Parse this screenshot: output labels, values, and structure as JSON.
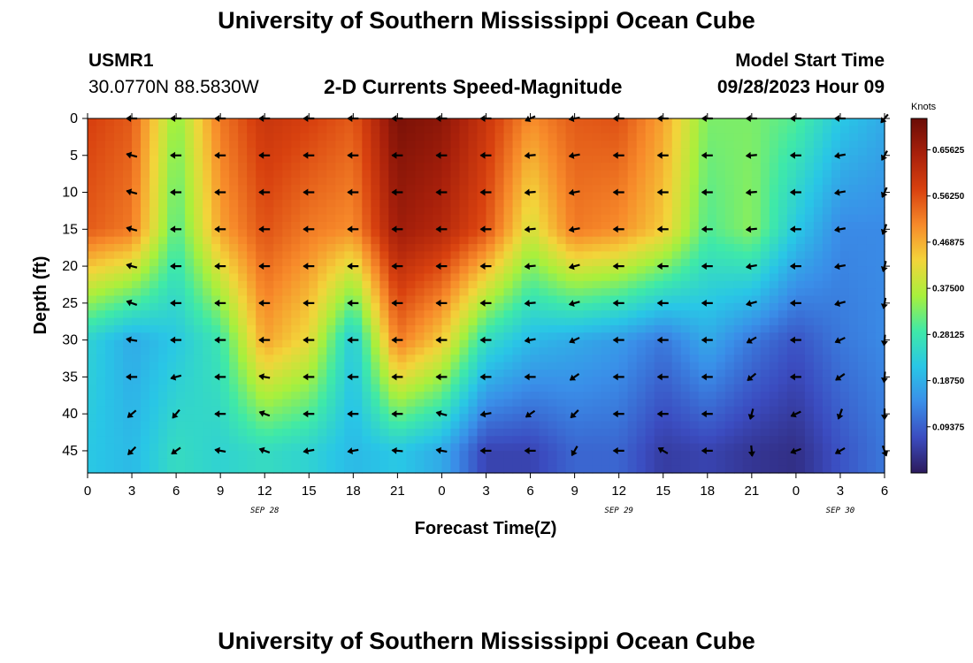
{
  "header": {
    "title": "University of Southern Mississippi Ocean Cube",
    "station_id": "USMR1",
    "coords": "30.0770N  88.5830W",
    "plot_title": "2-D Currents Speed-Magnitude",
    "model_label": "Model Start Time",
    "model_time": "09/28/2023 Hour 09"
  },
  "footer": {
    "title": "University of Southern Mississippi Ocean Cube"
  },
  "chart_data": {
    "type": "heatmap",
    "title": "2-D Currents Speed-Magnitude",
    "xlabel": "Forecast Time(Z)",
    "ylabel": "Depth (ft)",
    "x_hours": [
      0,
      54
    ],
    "x_tick_labels": [
      "0",
      "3",
      "6",
      "9",
      "12",
      "15",
      "18",
      "21",
      "0",
      "3",
      "6",
      "9",
      "12",
      "15",
      "18",
      "21",
      "0",
      "3",
      "6"
    ],
    "date_labels": [
      {
        "label": "SEP 28",
        "hour": 12
      },
      {
        "label": "SEP 29",
        "hour": 36
      },
      {
        "label": "SEP 30",
        "hour": 51
      }
    ],
    "depth_range": [
      0,
      48
    ],
    "y_ticks": [
      0,
      5,
      10,
      15,
      20,
      25,
      30,
      35,
      40,
      45
    ],
    "colorbar": {
      "title": "Knots",
      "min": 0,
      "max": 0.72,
      "ticks": [
        "0.65625",
        "0.56250",
        "0.46875",
        "0.37500",
        "0.28125",
        "0.18750",
        "0.09375"
      ],
      "tick_values": [
        0.65625,
        0.5625,
        0.46875,
        0.375,
        0.28125,
        0.1875,
        0.09375
      ],
      "colors": [
        "#2c1a5c",
        "#3b4cc0",
        "#3a8ee8",
        "#29c6e6",
        "#3fe9a8",
        "#a8f03c",
        "#f3d43a",
        "#f78a2a",
        "#d8410f",
        "#a8200b",
        "#6a0c06"
      ]
    },
    "speed_depths": [
      0,
      15,
      30,
      45
    ],
    "speed_profiles": [
      {
        "hour": 0,
        "speeds": [
          0.58,
          0.55,
          0.24,
          0.22
        ]
      },
      {
        "hour": 3,
        "speeds": [
          0.55,
          0.52,
          0.18,
          0.2
        ]
      },
      {
        "hour": 6,
        "speeds": [
          0.34,
          0.3,
          0.22,
          0.26
        ]
      },
      {
        "hour": 9,
        "speeds": [
          0.52,
          0.48,
          0.28,
          0.24
        ]
      },
      {
        "hour": 12,
        "speeds": [
          0.6,
          0.56,
          0.48,
          0.26
        ]
      },
      {
        "hour": 15,
        "speeds": [
          0.58,
          0.52,
          0.42,
          0.24
        ]
      },
      {
        "hour": 18,
        "speeds": [
          0.55,
          0.5,
          0.22,
          0.2
        ]
      },
      {
        "hour": 21,
        "speeds": [
          0.7,
          0.66,
          0.52,
          0.22
        ]
      },
      {
        "hour": 24,
        "speeds": [
          0.68,
          0.63,
          0.44,
          0.18
        ]
      },
      {
        "hour": 27,
        "speeds": [
          0.6,
          0.56,
          0.26,
          0.06
        ]
      },
      {
        "hour": 30,
        "speeds": [
          0.5,
          0.4,
          0.2,
          0.06
        ]
      },
      {
        "hour": 33,
        "speeds": [
          0.55,
          0.52,
          0.18,
          0.1
        ]
      },
      {
        "hour": 36,
        "speeds": [
          0.56,
          0.5,
          0.16,
          0.1
        ]
      },
      {
        "hour": 39,
        "speeds": [
          0.48,
          0.44,
          0.12,
          0.05
        ]
      },
      {
        "hour": 42,
        "speeds": [
          0.33,
          0.3,
          0.18,
          0.06
        ]
      },
      {
        "hour": 45,
        "speeds": [
          0.33,
          0.34,
          0.12,
          0.04
        ]
      },
      {
        "hour": 48,
        "speeds": [
          0.3,
          0.22,
          0.08,
          0.03
        ]
      },
      {
        "hour": 51,
        "speeds": [
          0.22,
          0.14,
          0.12,
          0.08
        ]
      },
      {
        "hour": 54,
        "speeds": [
          0.18,
          0.14,
          0.14,
          0.12
        ]
      }
    ],
    "vector_hours": [
      3,
      6,
      9,
      12,
      15,
      18,
      21,
      24,
      27,
      30,
      33,
      36,
      39,
      42,
      45,
      48,
      51,
      54
    ],
    "vector_depths": [
      0,
      5,
      10,
      15,
      20,
      25,
      30,
      35,
      40,
      45
    ],
    "vector_directions_deg": [
      [
        180,
        180,
        180,
        180,
        180,
        180,
        180,
        180,
        180,
        205,
        190,
        180,
        180,
        180,
        180,
        180,
        180,
        230
      ],
      [
        165,
        180,
        180,
        180,
        180,
        180,
        180,
        180,
        180,
        185,
        190,
        180,
        180,
        180,
        185,
        180,
        190,
        240
      ],
      [
        165,
        180,
        180,
        180,
        180,
        180,
        180,
        180,
        180,
        185,
        190,
        180,
        180,
        180,
        185,
        180,
        190,
        245
      ],
      [
        165,
        180,
        180,
        180,
        180,
        180,
        180,
        180,
        180,
        185,
        190,
        180,
        180,
        180,
        185,
        180,
        190,
        250
      ],
      [
        165,
        180,
        180,
        180,
        180,
        180,
        180,
        180,
        180,
        185,
        195,
        180,
        180,
        180,
        190,
        180,
        190,
        255
      ],
      [
        160,
        180,
        180,
        180,
        180,
        180,
        180,
        180,
        180,
        185,
        195,
        180,
        180,
        180,
        195,
        180,
        195,
        260
      ],
      [
        170,
        180,
        180,
        180,
        180,
        180,
        180,
        180,
        180,
        190,
        205,
        180,
        180,
        180,
        210,
        180,
        205,
        265
      ],
      [
        180,
        195,
        180,
        170,
        180,
        180,
        180,
        180,
        180,
        180,
        215,
        180,
        180,
        180,
        220,
        180,
        215,
        265
      ],
      [
        220,
        230,
        180,
        160,
        180,
        180,
        180,
        165,
        190,
        215,
        225,
        180,
        180,
        180,
        255,
        205,
        250,
        270
      ],
      [
        225,
        215,
        170,
        160,
        190,
        190,
        175,
        170,
        180,
        180,
        240,
        180,
        150,
        180,
        275,
        200,
        210,
        290
      ]
    ]
  }
}
